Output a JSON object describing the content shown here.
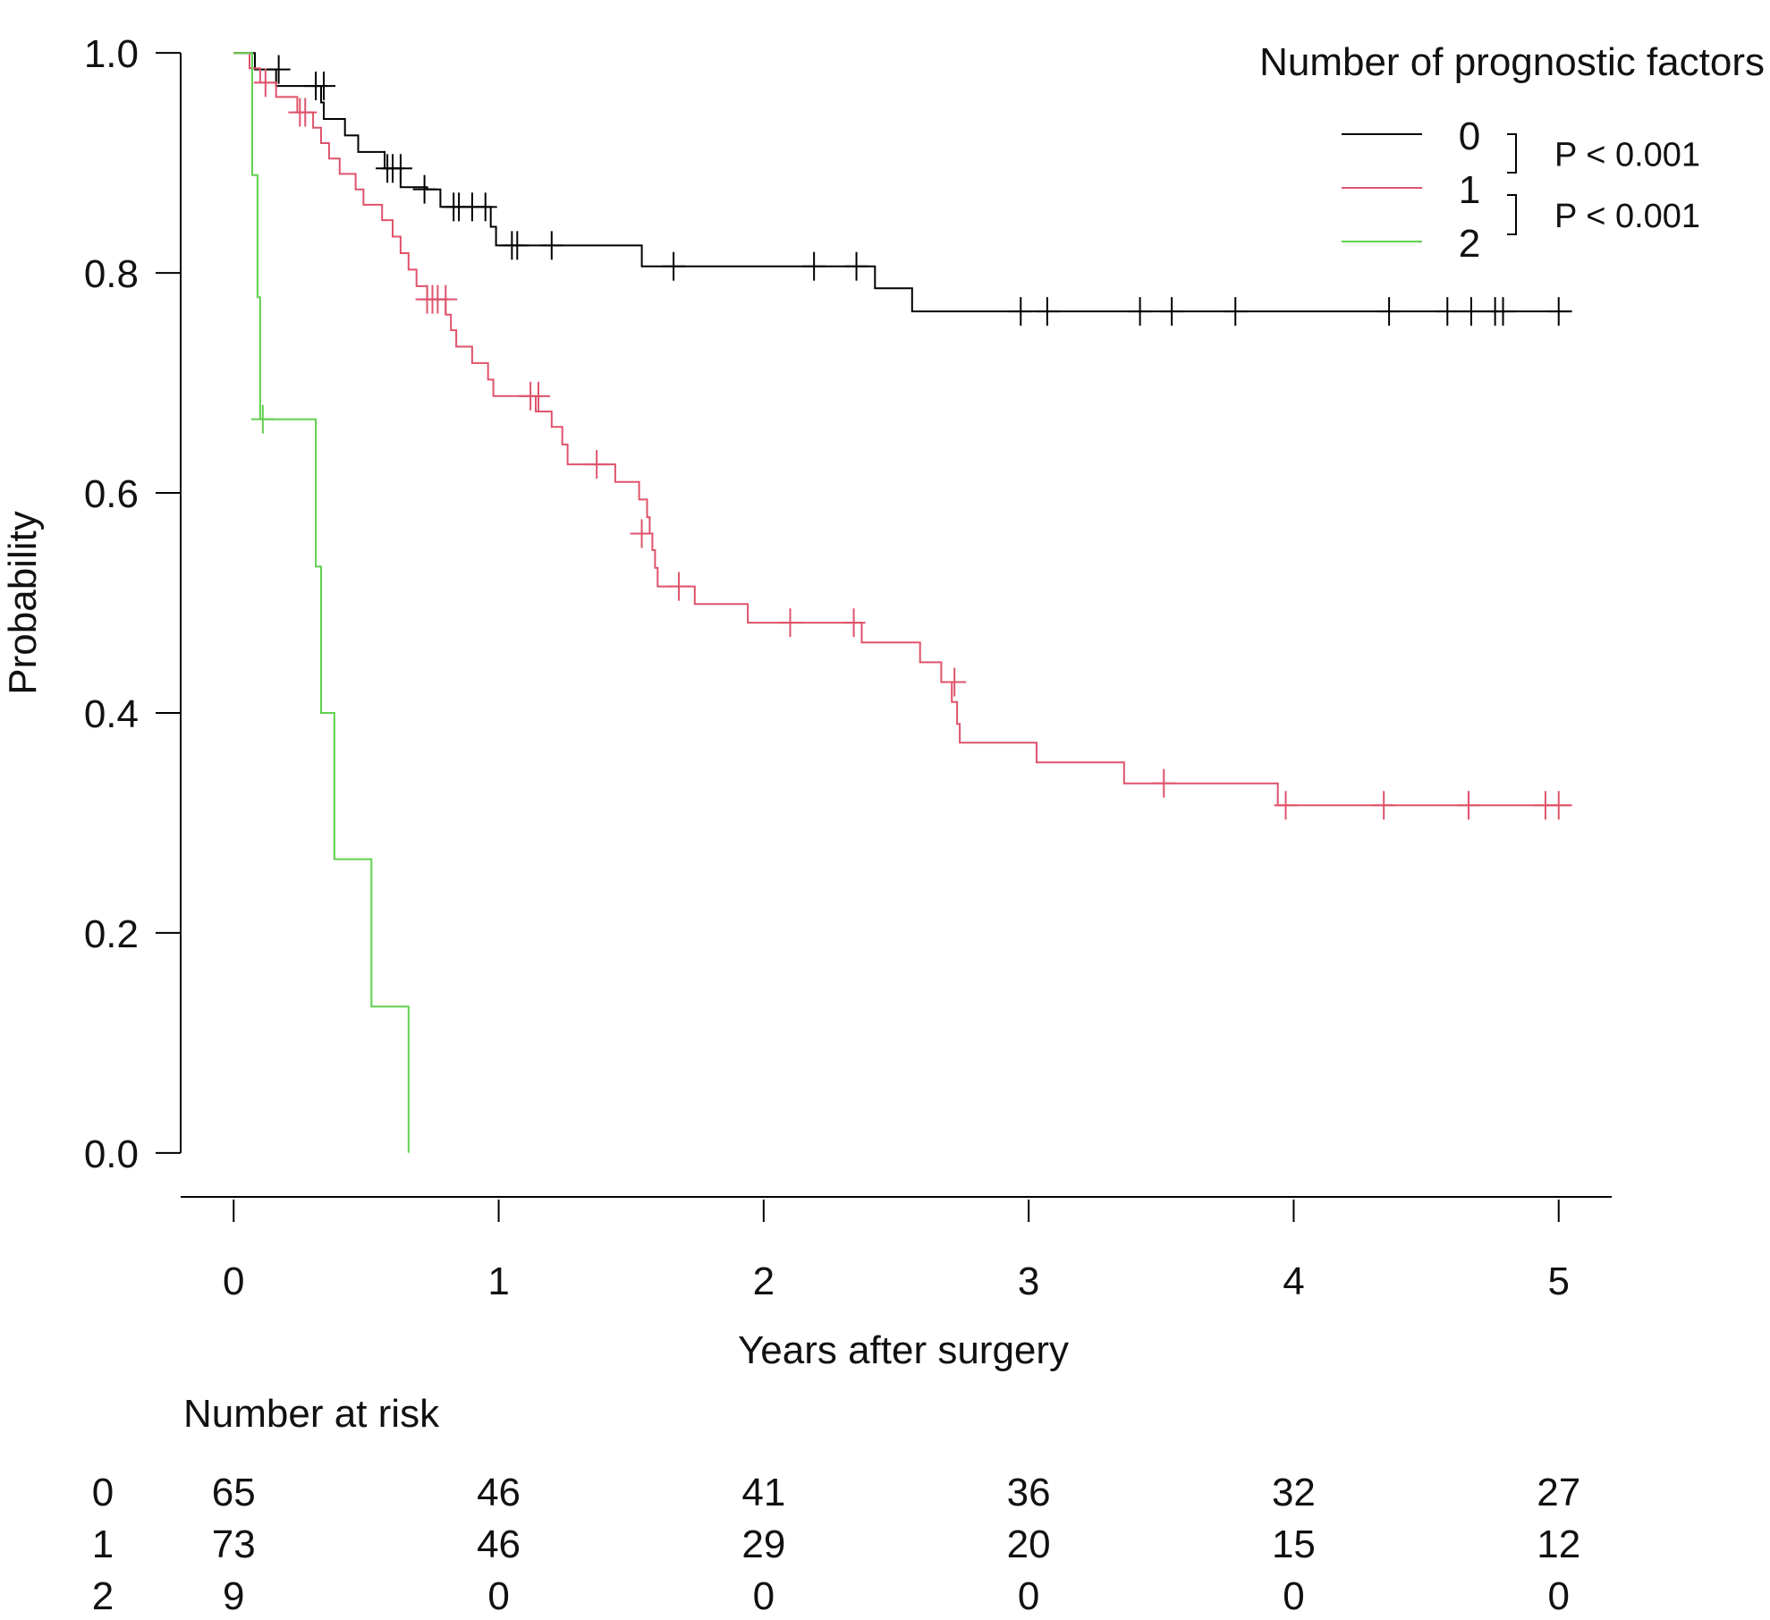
{
  "chart_data": {
    "type": "line",
    "subtype": "kaplan-meier",
    "title": "",
    "xlabel": "Years after surgery",
    "ylabel": "Probability",
    "xlim": [
      -0.2,
      5.2
    ],
    "ylim": [
      -0.04,
      1.04
    ],
    "x_ticks": [
      0,
      1,
      2,
      3,
      4,
      5
    ],
    "x_tick_labels": [
      "0",
      "1",
      "2",
      "3",
      "4",
      "5"
    ],
    "y_ticks": [
      0.0,
      0.2,
      0.4,
      0.6,
      0.8,
      1.0
    ],
    "y_tick_labels": [
      "0.0",
      "0.2",
      "0.4",
      "0.6",
      "0.8",
      "1.0"
    ],
    "legend": {
      "title": "Number of prognostic  factors",
      "position": "top-right",
      "entries": [
        "0",
        "1",
        "2"
      ],
      "p_values": [
        "P < 0.001",
        "P < 0.001"
      ]
    },
    "series": [
      {
        "name": "0",
        "color": "#000000",
        "steps": [
          [
            0,
            1.0
          ],
          [
            0.08,
            0.985
          ],
          [
            0.16,
            0.97
          ],
          [
            0.33,
            0.955
          ],
          [
            0.34,
            0.94
          ],
          [
            0.42,
            0.925
          ],
          [
            0.47,
            0.91
          ],
          [
            0.57,
            0.895
          ],
          [
            0.63,
            0.878
          ],
          [
            0.73,
            0.876
          ],
          [
            0.78,
            0.86
          ],
          [
            0.97,
            0.842
          ],
          [
            0.99,
            0.825
          ],
          [
            1.54,
            0.806
          ],
          [
            2.42,
            0.786
          ],
          [
            2.56,
            0.765
          ],
          [
            5.05,
            0.765
          ]
        ],
        "censored": [
          [
            0.17,
            0.985
          ],
          [
            0.31,
            0.97
          ],
          [
            0.34,
            0.97
          ],
          [
            0.58,
            0.895
          ],
          [
            0.6,
            0.895
          ],
          [
            0.63,
            0.895
          ],
          [
            0.72,
            0.876
          ],
          [
            0.83,
            0.86
          ],
          [
            0.85,
            0.86
          ],
          [
            0.9,
            0.86
          ],
          [
            0.95,
            0.86
          ],
          [
            1.05,
            0.825
          ],
          [
            1.07,
            0.825
          ],
          [
            1.2,
            0.825
          ],
          [
            1.66,
            0.806
          ],
          [
            2.19,
            0.806
          ],
          [
            2.35,
            0.806
          ],
          [
            2.97,
            0.765
          ],
          [
            3.07,
            0.765
          ],
          [
            3.42,
            0.765
          ],
          [
            3.54,
            0.765
          ],
          [
            3.78,
            0.765
          ],
          [
            4.36,
            0.765
          ],
          [
            4.58,
            0.765
          ],
          [
            4.67,
            0.765
          ],
          [
            4.76,
            0.765
          ],
          [
            4.79,
            0.765
          ],
          [
            5.0,
            0.765
          ]
        ]
      },
      {
        "name": "1",
        "color": "#DF536B",
        "steps": [
          [
            0,
            1.0
          ],
          [
            0.06,
            0.986
          ],
          [
            0.1,
            0.973
          ],
          [
            0.16,
            0.96
          ],
          [
            0.24,
            0.946
          ],
          [
            0.3,
            0.932
          ],
          [
            0.33,
            0.918
          ],
          [
            0.36,
            0.904
          ],
          [
            0.4,
            0.89
          ],
          [
            0.46,
            0.876
          ],
          [
            0.49,
            0.862
          ],
          [
            0.56,
            0.848
          ],
          [
            0.6,
            0.833
          ],
          [
            0.63,
            0.818
          ],
          [
            0.66,
            0.803
          ],
          [
            0.69,
            0.788
          ],
          [
            0.73,
            0.776
          ],
          [
            0.8,
            0.762
          ],
          [
            0.82,
            0.748
          ],
          [
            0.84,
            0.733
          ],
          [
            0.9,
            0.718
          ],
          [
            0.96,
            0.703
          ],
          [
            0.98,
            0.688
          ],
          [
            1.14,
            0.674
          ],
          [
            1.2,
            0.66
          ],
          [
            1.24,
            0.644
          ],
          [
            1.26,
            0.626
          ],
          [
            1.44,
            0.61
          ],
          [
            1.53,
            0.594
          ],
          [
            1.56,
            0.578
          ],
          [
            1.57,
            0.563
          ],
          [
            1.58,
            0.548
          ],
          [
            1.59,
            0.532
          ],
          [
            1.6,
            0.515
          ],
          [
            1.74,
            0.499
          ],
          [
            1.94,
            0.482
          ],
          [
            2.37,
            0.464
          ],
          [
            2.59,
            0.446
          ],
          [
            2.67,
            0.428
          ],
          [
            2.71,
            0.41
          ],
          [
            2.73,
            0.39
          ],
          [
            2.74,
            0.373
          ],
          [
            3.03,
            0.355
          ],
          [
            3.36,
            0.336
          ],
          [
            3.94,
            0.316
          ],
          [
            5.05,
            0.316
          ]
        ],
        "censored": [
          [
            0.12,
            0.973
          ],
          [
            0.25,
            0.946
          ],
          [
            0.27,
            0.946
          ],
          [
            0.73,
            0.776
          ],
          [
            0.75,
            0.776
          ],
          [
            0.77,
            0.776
          ],
          [
            0.8,
            0.776
          ],
          [
            1.12,
            0.688
          ],
          [
            1.15,
            0.688
          ],
          [
            1.37,
            0.626
          ],
          [
            1.54,
            0.563
          ],
          [
            1.68,
            0.515
          ],
          [
            2.1,
            0.482
          ],
          [
            2.34,
            0.482
          ],
          [
            2.72,
            0.428
          ],
          [
            3.51,
            0.336
          ],
          [
            3.97,
            0.316
          ],
          [
            4.34,
            0.316
          ],
          [
            4.66,
            0.316
          ],
          [
            4.95,
            0.316
          ],
          [
            5.0,
            0.316
          ]
        ]
      },
      {
        "name": "2",
        "color": "#61D04F",
        "steps": [
          [
            0,
            1.0
          ],
          [
            0.07,
            1.0
          ],
          [
            0.07,
            0.889
          ],
          [
            0.09,
            0.778
          ],
          [
            0.1,
            0.667
          ],
          [
            0.31,
            0.533
          ],
          [
            0.33,
            0.4
          ],
          [
            0.38,
            0.267
          ],
          [
            0.52,
            0.133
          ],
          [
            0.66,
            0.0
          ]
        ],
        "censored": [
          [
            0.11,
            0.667
          ]
        ]
      }
    ],
    "risk_table": {
      "title": "Number at risk",
      "times": [
        0,
        1,
        2,
        3,
        4,
        5
      ],
      "rows": [
        {
          "label": "0",
          "values": [
            "65",
            "46",
            "41",
            "36",
            "32",
            "27"
          ]
        },
        {
          "label": "1",
          "values": [
            "73",
            "46",
            "29",
            "20",
            "15",
            "12"
          ]
        },
        {
          "label": "2",
          "values": [
            "9",
            "0",
            "0",
            "0",
            "0",
            "0"
          ]
        }
      ]
    }
  }
}
